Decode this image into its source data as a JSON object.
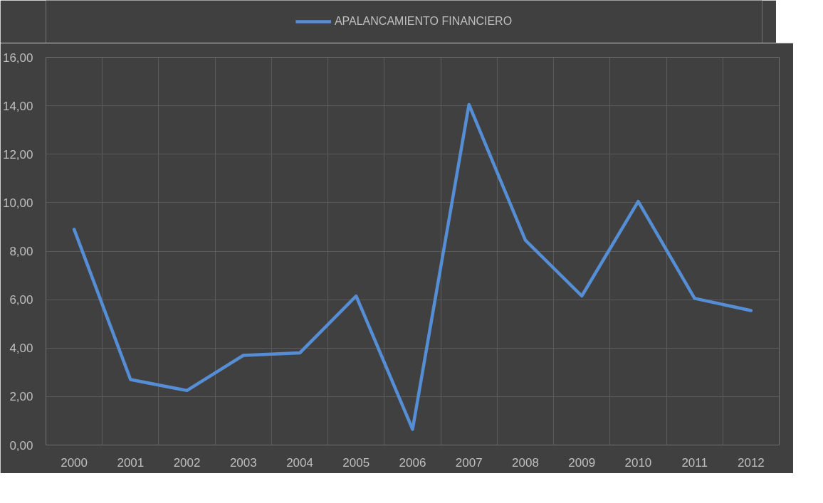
{
  "chart_data": {
    "type": "line",
    "categories": [
      "2000",
      "2001",
      "2002",
      "2003",
      "2004",
      "2005",
      "2006",
      "2007",
      "2008",
      "2009",
      "2010",
      "2011",
      "2012"
    ],
    "series": [
      {
        "name": "APALANCAMIENTO FINANCIERO",
        "color": "#558ed5",
        "values": [
          8.9,
          2.7,
          2.25,
          3.7,
          3.8,
          6.15,
          0.65,
          14.05,
          8.45,
          6.15,
          10.05,
          6.05,
          5.55
        ]
      }
    ],
    "ylim": [
      0,
      16
    ],
    "yticks": [
      {
        "value": 0,
        "label": "0,00"
      },
      {
        "value": 2,
        "label": "2,00"
      },
      {
        "value": 4,
        "label": "4,00"
      },
      {
        "value": 6,
        "label": "6,00"
      },
      {
        "value": 8,
        "label": "8,00"
      },
      {
        "value": 10,
        "label": "10,00"
      },
      {
        "value": 12,
        "label": "12,00"
      },
      {
        "value": 14,
        "label": "14,00"
      },
      {
        "value": 16,
        "label": "16,00"
      }
    ],
    "grid": true,
    "legend": "top",
    "marker": "none",
    "line_style": "solid"
  }
}
